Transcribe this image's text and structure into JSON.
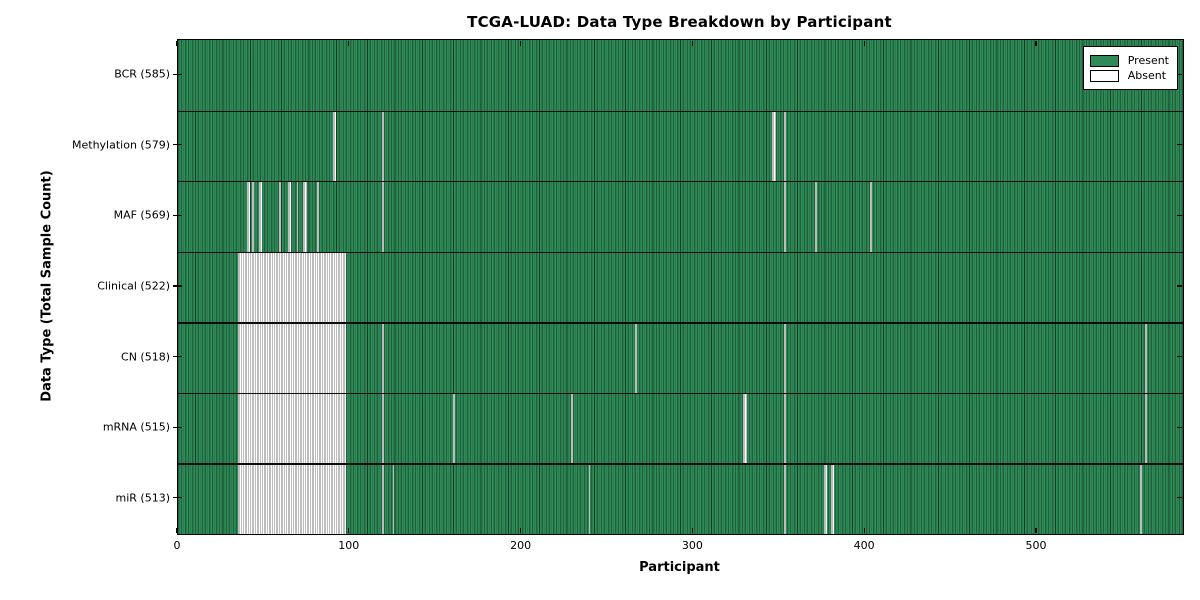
{
  "figure": {
    "title": "TCGA-LUAD: Data Type Breakdown by Participant",
    "xlabel": "Participant",
    "ylabel": "Data Type (Total Sample Count)"
  },
  "legend": {
    "items": [
      {
        "name": "present",
        "label": "Present",
        "color": "#2e8b57"
      },
      {
        "name": "absent",
        "label": "Absent",
        "color": "#ffffff"
      }
    ]
  },
  "chart_data": {
    "type": "heatmap",
    "subtype": "presence-absence-matrix",
    "title": "TCGA-LUAD: Data Type Breakdown by Participant",
    "xlabel": "Participant",
    "ylabel": "Data Type (Total Sample Count)",
    "xlim": [
      0,
      585
    ],
    "x_ticks": [
      0,
      100,
      200,
      300,
      400,
      500
    ],
    "n_participants": 585,
    "present_color": "#2e8b57",
    "absent_color": "#ffffff",
    "edge_color": "#000000",
    "legend_entries": [
      "Present",
      "Absent"
    ],
    "legend_position": "upper right",
    "grid": false,
    "rows": [
      {
        "name": "bcr",
        "label": "BCR (585)",
        "total_samples": 585,
        "absent_ranges": []
      },
      {
        "name": "methylation",
        "label": "Methylation (579)",
        "total_samples": 579,
        "absent_ranges": [
          [
            90,
            91
          ],
          [
            119,
            119
          ],
          [
            346,
            347
          ],
          [
            353,
            353
          ]
        ]
      },
      {
        "name": "maf",
        "label": "MAF (569)",
        "total_samples": 569,
        "absent_ranges": [
          [
            40,
            41
          ],
          [
            43,
            43
          ],
          [
            47,
            48
          ],
          [
            59,
            59
          ],
          [
            64,
            65
          ],
          [
            69,
            69
          ],
          [
            73,
            74
          ],
          [
            81,
            81
          ],
          [
            119,
            119
          ],
          [
            353,
            353
          ],
          [
            371,
            371
          ],
          [
            403,
            403
          ]
        ]
      },
      {
        "name": "clinical",
        "label": "Clinical (522)",
        "total_samples": 522,
        "absent_ranges": [
          [
            35,
            97
          ]
        ]
      },
      {
        "name": "cn",
        "label": "CN (518)",
        "total_samples": 518,
        "absent_ranges": [
          [
            35,
            97
          ],
          [
            119,
            119
          ],
          [
            266,
            266
          ],
          [
            353,
            353
          ],
          [
            563,
            563
          ]
        ]
      },
      {
        "name": "mrna",
        "label": "mRNA (515)",
        "total_samples": 515,
        "absent_ranges": [
          [
            35,
            97
          ],
          [
            119,
            119
          ],
          [
            160,
            160
          ],
          [
            229,
            229
          ],
          [
            329,
            330
          ],
          [
            353,
            353
          ],
          [
            563,
            563
          ]
        ]
      },
      {
        "name": "mir",
        "label": "miR (513)",
        "total_samples": 513,
        "absent_ranges": [
          [
            35,
            97
          ],
          [
            119,
            119
          ],
          [
            125,
            125
          ],
          [
            239,
            239
          ],
          [
            353,
            353
          ],
          [
            376,
            377
          ],
          [
            380,
            381
          ],
          [
            560,
            560
          ]
        ]
      }
    ]
  }
}
